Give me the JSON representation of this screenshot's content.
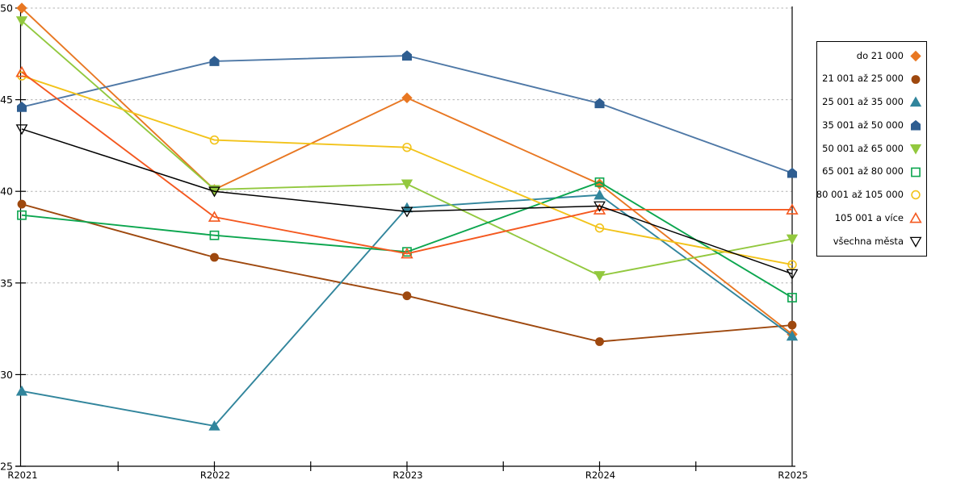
{
  "chart_data": {
    "type": "line",
    "title": "",
    "xlabel": "",
    "ylabel": "",
    "categories": [
      "R2021",
      "R2022",
      "R2023",
      "R2024",
      "R2025"
    ],
    "y_ticks": [
      25,
      30,
      35,
      40,
      45,
      50
    ],
    "ylim": [
      25,
      50
    ],
    "grid": "horizontal-dashed",
    "grid_color": "#b3b3b3",
    "axis_color": "#000000",
    "legend_position": "right-outside-boxed",
    "series": [
      {
        "name": "do 21 000",
        "marker": "diamond",
        "filled": true,
        "color": "#E87722",
        "values": [
          50.0,
          40.1,
          45.1,
          40.4,
          32.2
        ]
      },
      {
        "name": "21 001 až 25 000",
        "marker": "circle",
        "filled": true,
        "color": "#9E480E",
        "values": [
          39.3,
          36.4,
          34.3,
          31.8,
          32.7
        ]
      },
      {
        "name": "25 001 až 35 000",
        "marker": "triangle-up",
        "filled": true,
        "color": "#31859C",
        "values": [
          29.1,
          27.2,
          39.1,
          39.8,
          32.1
        ]
      },
      {
        "name": "35 001 až 50 000",
        "marker": "pentagon",
        "filled": true,
        "color": "#2F5E91",
        "line_color": "#4E78A6",
        "values": [
          44.6,
          47.1,
          47.4,
          44.8,
          41.0
        ]
      },
      {
        "name": "50 001 až 65 000",
        "marker": "triangle-down",
        "filled": true,
        "color": "#92C83E",
        "values": [
          49.3,
          40.1,
          40.4,
          35.4,
          37.4
        ]
      },
      {
        "name": "65 001 až 80 000",
        "marker": "square",
        "filled": false,
        "color": "#0CA64F",
        "values": [
          38.7,
          37.6,
          36.7,
          40.5,
          34.2
        ]
      },
      {
        "name": "80 001 až 105 000",
        "marker": "circle",
        "filled": false,
        "color": "#F2C31A",
        "values": [
          46.3,
          42.8,
          42.4,
          38.0,
          36.0
        ]
      },
      {
        "name": "105 001 a více",
        "marker": "triangle-up",
        "filled": false,
        "color": "#F4581F",
        "values": [
          46.5,
          38.6,
          36.6,
          39.0,
          39.0
        ]
      },
      {
        "name": "všechna města",
        "marker": "triangle-down",
        "filled": false,
        "color": "#000000",
        "values": [
          43.4,
          40.0,
          38.9,
          39.2,
          35.5
        ]
      }
    ]
  }
}
